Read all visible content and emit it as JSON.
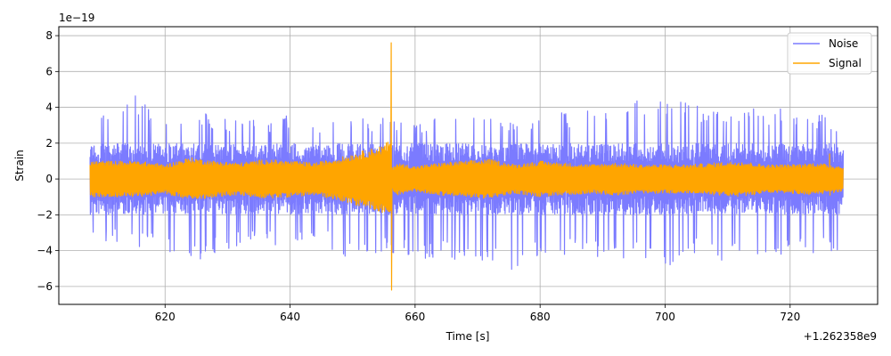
{
  "chart_data": {
    "type": "line",
    "title": "",
    "xlabel": "Time [s]",
    "ylabel": "Strain",
    "x_offset_label": "+1.262358e9",
    "y_scale_label": "1e−19",
    "xlim": [
      603,
      734
    ],
    "ylim": [
      -7,
      8.5
    ],
    "x_ticks": [
      620,
      640,
      660,
      680,
      700,
      720
    ],
    "x_tick_labels": [
      "620",
      "640",
      "660",
      "680",
      "700",
      "720"
    ],
    "y_ticks": [
      -6,
      -4,
      -2,
      0,
      2,
      4,
      6,
      8
    ],
    "y_tick_labels": [
      "−6",
      "−4",
      "−2",
      "0",
      "2",
      "4",
      "6",
      "8"
    ],
    "grid": true,
    "legend_position": "top-right",
    "series": [
      {
        "name": "Noise",
        "color": "#7b7bff",
        "x_range": [
          608,
          728.5
        ],
        "envelope_x": [
          608,
          615,
          620,
          625,
          630,
          635,
          640,
          645,
          650,
          655,
          660,
          665,
          670,
          675,
          680,
          685,
          690,
          695,
          700,
          705,
          710,
          715,
          720,
          725,
          728.5
        ],
        "upper": [
          3.5,
          4.7,
          3.6,
          3.8,
          3.5,
          3.3,
          3.6,
          3.4,
          3.3,
          3.5,
          3.4,
          3.6,
          3.5,
          3.3,
          3.7,
          3.8,
          3.9,
          4.7,
          4.7,
          4.2,
          4.0,
          4.0,
          4.0,
          3.7,
          3.0
        ],
        "lower": [
          -3.4,
          -3.7,
          -4.2,
          -4.8,
          -4.0,
          -3.7,
          -3.8,
          -3.6,
          -4.9,
          -4.2,
          -4.4,
          -4.6,
          -4.6,
          -5.2,
          -4.5,
          -4.2,
          -4.5,
          -4.4,
          -4.9,
          -4.4,
          -4.6,
          -4.6,
          -4.4,
          -4.2,
          -3.9
        ],
        "core_amplitude": 1.8
      },
      {
        "name": "Signal",
        "color": "#ffa500",
        "x_range": [
          608,
          728.5
        ],
        "envelope_x": [
          608,
          612,
          616,
          620,
          624,
          628,
          632,
          636,
          640,
          644,
          648,
          652,
          655,
          656,
          656.3,
          657,
          660,
          664,
          668,
          672,
          676,
          680,
          684,
          688,
          692,
          696,
          700,
          704,
          708,
          712,
          716,
          720,
          724,
          728.5
        ],
        "amplitude": [
          1.0,
          1.0,
          1.0,
          0.8,
          1.2,
          1.0,
          0.9,
          1.1,
          1.0,
          0.9,
          1.2,
          1.6,
          1.9,
          2.2,
          0.6,
          0.9,
          0.7,
          0.9,
          1.0,
          1.1,
          0.8,
          1.0,
          0.9,
          0.8,
          0.9,
          0.8,
          0.8,
          0.8,
          0.9,
          1.0,
          0.8,
          0.8,
          0.9,
          0.7
        ],
        "spike": {
          "x": 656.2,
          "max": 7.6,
          "min": -6.2
        },
        "minor_spike": {
          "x": 726.3,
          "max": 1.4,
          "min": -0.9
        }
      }
    ]
  }
}
